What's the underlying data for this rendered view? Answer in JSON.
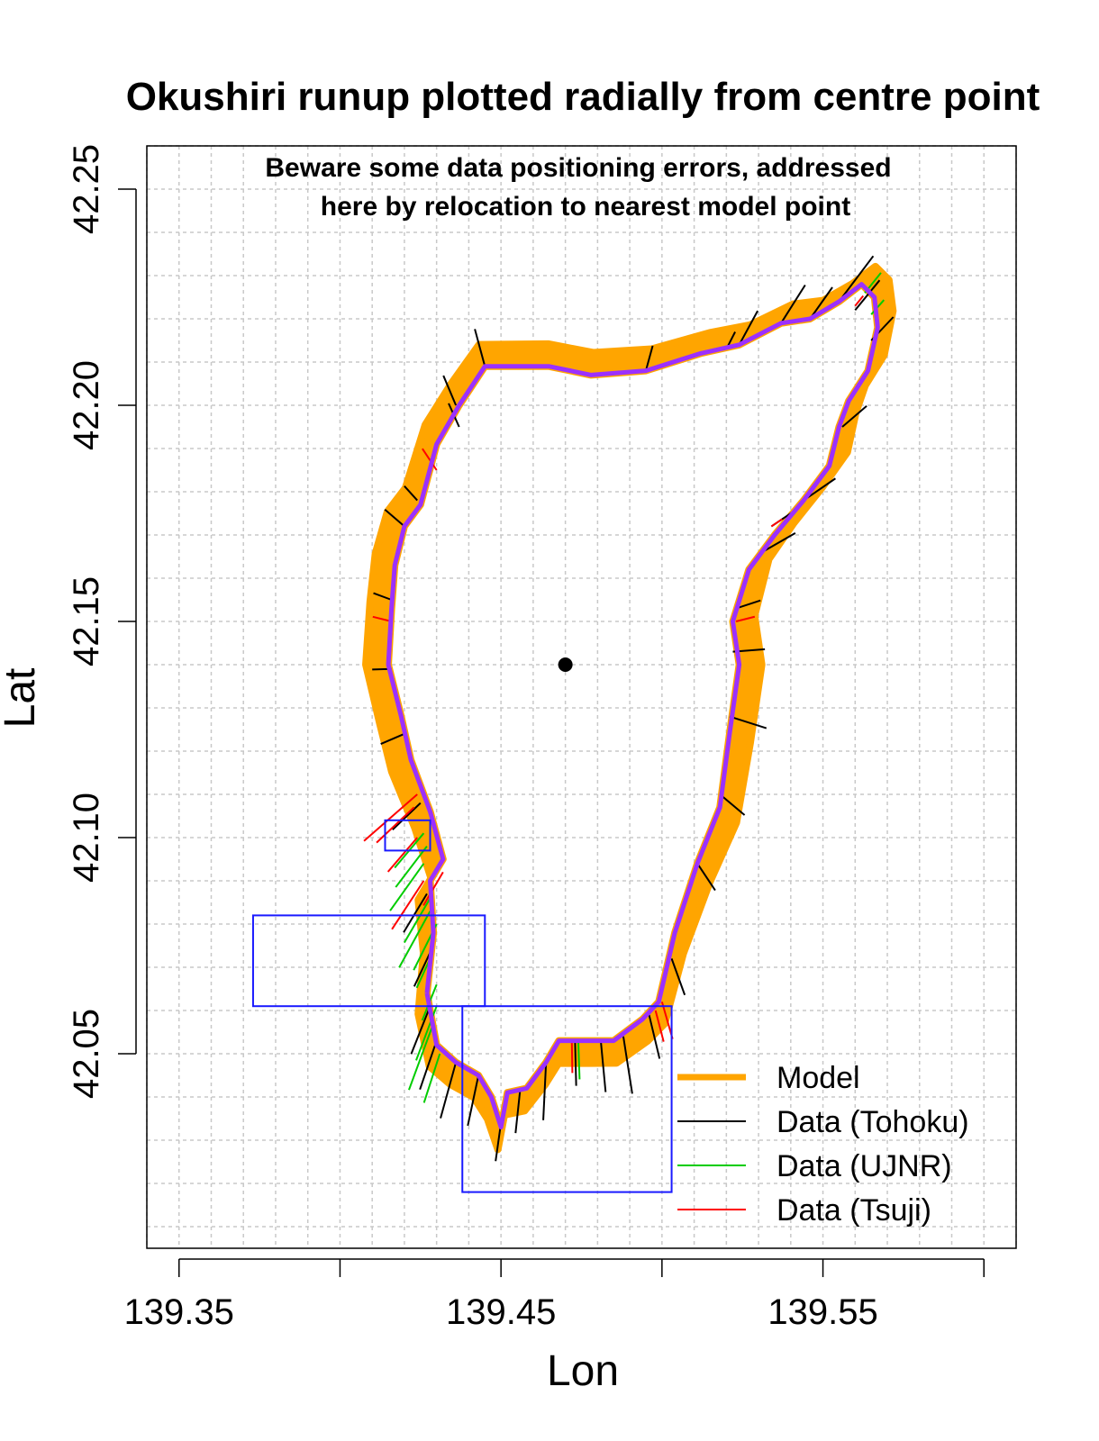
{
  "chart_data": {
    "type": "scatter",
    "title": "Okushiri runup plotted radially from centre point",
    "annotation": [
      "Beware some data positioning errors, addressed",
      "here by relocation to nearest model point"
    ],
    "xlabel": "Lon",
    "ylabel": "Lat",
    "xlim": [
      139.34,
      139.61
    ],
    "ylim": [
      42.005,
      42.26
    ],
    "xticks": [
      {
        "value": 139.35,
        "label": "139.35"
      },
      {
        "value": 139.4,
        "label": ""
      },
      {
        "value": 139.45,
        "label": "139.45"
      },
      {
        "value": 139.5,
        "label": ""
      },
      {
        "value": 139.55,
        "label": "139.55"
      },
      {
        "value": 139.6,
        "label": ""
      }
    ],
    "yticks": [
      {
        "value": 42.05,
        "label": "42.05"
      },
      {
        "value": 42.1,
        "label": "42.10"
      },
      {
        "value": 42.15,
        "label": "42.15"
      },
      {
        "value": 42.2,
        "label": "42.20"
      },
      {
        "value": 42.25,
        "label": "42.25"
      }
    ],
    "grid": true,
    "grid_step": 0.01,
    "centre_point": [
      139.47,
      42.14
    ],
    "coastline": [
      [
        139.427,
        42.064
      ],
      [
        139.429,
        42.078
      ],
      [
        139.428,
        42.09
      ],
      [
        139.432,
        42.095
      ],
      [
        139.428,
        42.106
      ],
      [
        139.422,
        42.118
      ],
      [
        139.419,
        42.128
      ],
      [
        139.415,
        42.14
      ],
      [
        139.416,
        42.153
      ],
      [
        139.417,
        42.163
      ],
      [
        139.42,
        42.172
      ],
      [
        139.425,
        42.177
      ],
      [
        139.43,
        42.191
      ],
      [
        139.437,
        42.2
      ],
      [
        139.445,
        42.209
      ],
      [
        139.465,
        42.209
      ],
      [
        139.478,
        42.207
      ],
      [
        139.495,
        42.208
      ],
      [
        139.512,
        42.212
      ],
      [
        139.524,
        42.214
      ],
      [
        139.537,
        42.219
      ],
      [
        139.546,
        42.22
      ],
      [
        139.555,
        42.224
      ],
      [
        139.562,
        42.228
      ],
      [
        139.566,
        42.225
      ],
      [
        139.567,
        42.218
      ],
      [
        139.564,
        42.208
      ],
      [
        139.558,
        42.201
      ],
      [
        139.555,
        42.195
      ],
      [
        139.552,
        42.186
      ],
      [
        139.544,
        42.178
      ],
      [
        139.535,
        42.17
      ],
      [
        139.527,
        42.162
      ],
      [
        139.522,
        42.15
      ],
      [
        139.524,
        42.14
      ],
      [
        139.521,
        42.124
      ],
      [
        139.518,
        42.107
      ],
      [
        139.511,
        42.094
      ],
      [
        139.504,
        42.078
      ],
      [
        139.499,
        42.062
      ],
      [
        139.494,
        42.058
      ],
      [
        139.485,
        42.053
      ],
      [
        139.477,
        42.053
      ],
      [
        139.468,
        42.053
      ],
      [
        139.464,
        42.048
      ],
      [
        139.458,
        42.042
      ],
      [
        139.452,
        42.041
      ],
      [
        139.45,
        42.033
      ],
      [
        139.447,
        42.04
      ],
      [
        139.443,
        42.045
      ],
      [
        139.436,
        42.048
      ],
      [
        139.43,
        42.052
      ],
      [
        139.428,
        42.06
      ],
      [
        139.427,
        42.064
      ]
    ],
    "model_runup_offset": 0.007,
    "series": [
      {
        "name": "Model",
        "color": "#FFA500",
        "points": []
      },
      {
        "name": "Data (Tohoku)",
        "color": "#000000",
        "points": [
          [
            139.436,
            42.2,
            0.01
          ],
          [
            139.445,
            42.209,
            0.012
          ],
          [
            139.495,
            42.208,
            0.008
          ],
          [
            139.524,
            42.214,
            0.012
          ],
          [
            139.537,
            42.219,
            0.014
          ],
          [
            139.546,
            42.22,
            0.012
          ],
          [
            139.556,
            42.225,
            0.016
          ],
          [
            139.565,
            42.215,
            0.01
          ],
          [
            139.556,
            42.195,
            0.01
          ],
          [
            139.544,
            42.178,
            0.012
          ],
          [
            139.531,
            42.166,
            0.012
          ],
          [
            139.523,
            42.153,
            0.008
          ],
          [
            139.522,
            42.143,
            0.01
          ],
          [
            139.521,
            42.128,
            0.012
          ],
          [
            139.518,
            42.11,
            0.01
          ],
          [
            139.511,
            42.094,
            0.01
          ],
          [
            139.503,
            42.072,
            0.012
          ],
          [
            139.496,
            42.059,
            0.014
          ],
          [
            139.488,
            42.054,
            0.018
          ],
          [
            139.481,
            42.053,
            0.016
          ],
          [
            139.473,
            42.053,
            0.014
          ],
          [
            139.464,
            42.048,
            0.018
          ],
          [
            139.456,
            42.042,
            0.014
          ],
          [
            139.45,
            42.034,
            0.012
          ],
          [
            139.443,
            42.045,
            0.016
          ],
          [
            139.436,
            42.048,
            0.018
          ],
          [
            139.43,
            42.053,
            0.016
          ],
          [
            139.428,
            42.061,
            0.016
          ],
          [
            139.429,
            42.075,
            0.014
          ],
          [
            139.427,
            42.087,
            0.014
          ],
          [
            139.425,
            42.108,
            0.012
          ],
          [
            139.42,
            42.124,
            0.008
          ],
          [
            139.416,
            42.139,
            0.006
          ],
          [
            139.416,
            42.155,
            0.006
          ],
          [
            139.42,
            42.172,
            0.008
          ],
          [
            139.424,
            42.178,
            0.006
          ],
          [
            139.437,
            42.195,
            0.008
          ],
          [
            139.52,
            42.213,
            0.006
          ],
          [
            139.56,
            42.222,
            0.012
          ],
          [
            139.534,
            42.172,
            0.01
          ]
        ]
      },
      {
        "name": "Data (UJNR)",
        "color": "#00CC00",
        "points": [
          [
            139.43,
            42.08,
            0.016
          ],
          [
            139.428,
            42.083,
            0.02
          ],
          [
            139.428,
            42.086,
            0.016
          ],
          [
            139.426,
            42.094,
            0.018
          ],
          [
            139.427,
            42.098,
            0.016
          ],
          [
            139.426,
            42.101,
            0.014
          ],
          [
            139.428,
            42.072,
            0.01
          ],
          [
            139.43,
            42.066,
            0.012
          ],
          [
            139.43,
            42.061,
            0.018
          ],
          [
            139.429,
            42.057,
            0.022
          ],
          [
            139.431,
            42.05,
            0.016
          ],
          [
            139.474,
            42.053,
            0.012
          ],
          [
            139.563,
            42.226,
            0.008
          ],
          [
            139.565,
            42.221,
            0.006
          ]
        ]
      },
      {
        "name": "Data (Tsuji)",
        "color": "#FF0000",
        "points": [
          [
            139.43,
            42.185,
            0.008
          ],
          [
            139.416,
            42.15,
            0.006
          ],
          [
            139.426,
            42.09,
            0.018
          ],
          [
            139.424,
            42.1,
            0.014
          ],
          [
            139.423,
            42.107,
            0.016
          ],
          [
            139.424,
            42.11,
            0.022
          ],
          [
            139.432,
            42.092,
            0.012
          ],
          [
            139.5,
            42.062,
            0.012
          ],
          [
            139.498,
            42.06,
            0.01
          ],
          [
            139.472,
            42.053,
            0.01
          ],
          [
            139.523,
            42.15,
            0.006
          ],
          [
            139.534,
            42.172,
            0.004
          ],
          [
            139.56,
            42.223,
            0.004
          ]
        ]
      }
    ],
    "boxes": [
      {
        "x": [
          139.373,
          139.445
        ],
        "y": [
          42.061,
          42.082
        ]
      },
      {
        "x": [
          139.414,
          139.428
        ],
        "y": [
          42.097,
          42.104
        ]
      },
      {
        "x": [
          139.438,
          139.503
        ],
        "y": [
          42.018,
          42.061
        ]
      }
    ],
    "legend_position": "bottom-right"
  }
}
